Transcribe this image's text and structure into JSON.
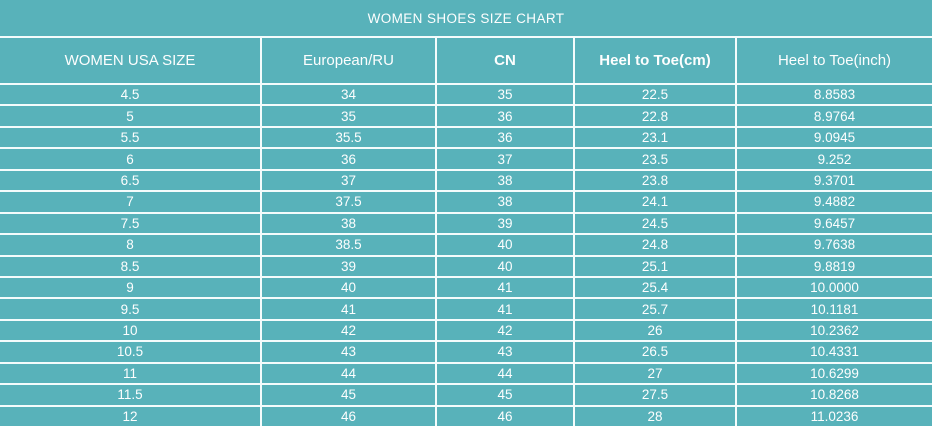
{
  "title": "WOMEN SHOES SIZE CHART",
  "colors": {
    "background_teal": "#58b2ba",
    "text_white": "#fdfefe",
    "grid_line_white": "#f4fcfc"
  },
  "table": {
    "columns": [
      {
        "label": "WOMEN USA SIZE",
        "bold": false
      },
      {
        "label": "European/RU",
        "bold": false
      },
      {
        "label": "CN",
        "bold": true
      },
      {
        "label": "Heel to Toe(cm)",
        "bold": true
      },
      {
        "label": "Heel to Toe(inch)",
        "bold": false
      }
    ],
    "rows": [
      [
        "4.5",
        "34",
        "35",
        "22.5",
        "8.8583"
      ],
      [
        "5",
        "35",
        "36",
        "22.8",
        "8.9764"
      ],
      [
        "5.5",
        "35.5",
        "36",
        "23.1",
        "9.0945"
      ],
      [
        "6",
        "36",
        "37",
        "23.5",
        "9.252"
      ],
      [
        "6.5",
        "37",
        "38",
        "23.8",
        "9.3701"
      ],
      [
        "7",
        "37.5",
        "38",
        "24.1",
        "9.4882"
      ],
      [
        "7.5",
        "38",
        "39",
        "24.5",
        "9.6457"
      ],
      [
        "8",
        "38.5",
        "40",
        "24.8",
        "9.7638"
      ],
      [
        "8.5",
        "39",
        "40",
        "25.1",
        "9.8819"
      ],
      [
        "9",
        "40",
        "41",
        "25.4",
        "10.0000"
      ],
      [
        "9.5",
        "41",
        "41",
        "25.7",
        "10.1181"
      ],
      [
        "10",
        "42",
        "42",
        "26",
        "10.2362"
      ],
      [
        "10.5",
        "43",
        "43",
        "26.5",
        "10.4331"
      ],
      [
        "11",
        "44",
        "44",
        "27",
        "10.6299"
      ],
      [
        "11.5",
        "45",
        "45",
        "27.5",
        "10.8268"
      ],
      [
        "12",
        "46",
        "46",
        "28",
        "11.0236"
      ]
    ]
  }
}
